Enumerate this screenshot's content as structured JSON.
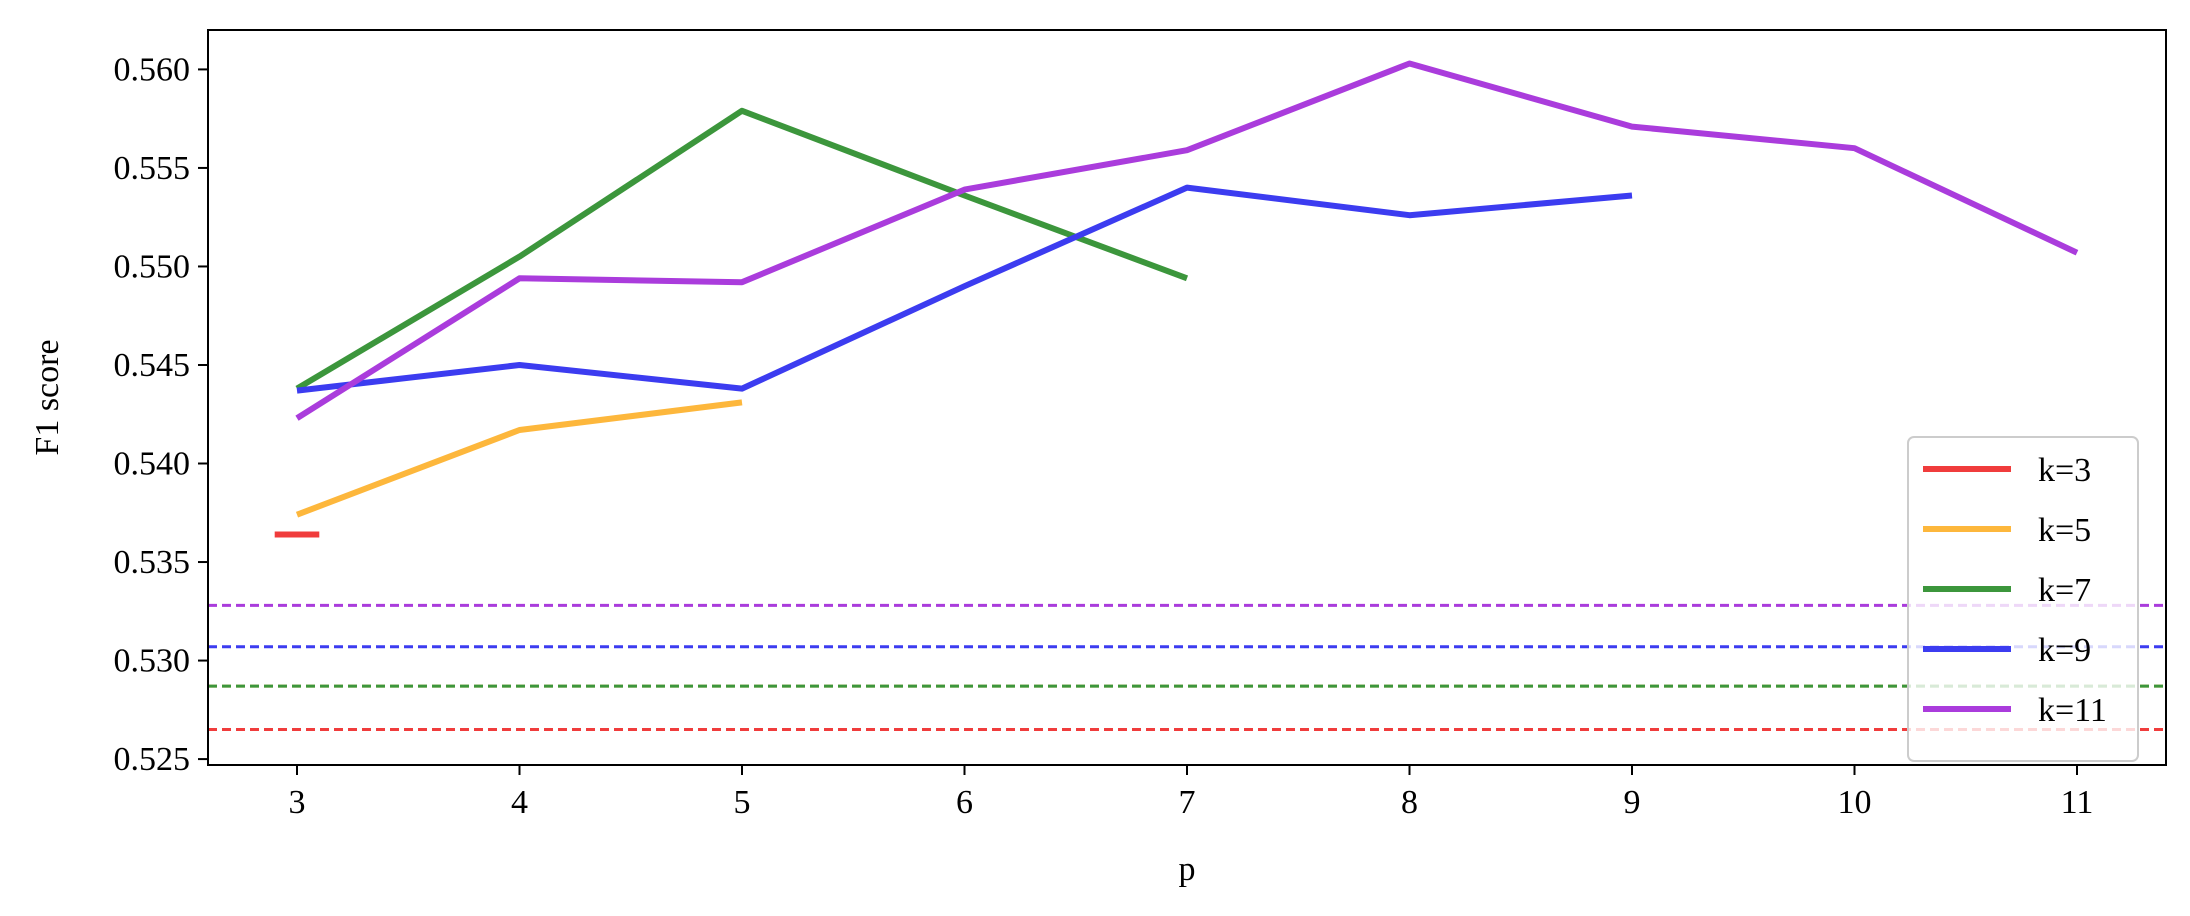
{
  "chart_data": {
    "type": "line",
    "title": "",
    "xlabel": "p",
    "ylabel": "F1 score",
    "xlim": [
      2.6,
      11.4
    ],
    "ylim": [
      0.5247,
      0.562
    ],
    "x_ticks": [
      3,
      4,
      5,
      6,
      7,
      8,
      9,
      10,
      11
    ],
    "y_ticks": [
      0.525,
      0.53,
      0.535,
      0.54,
      0.545,
      0.55,
      0.555,
      0.56
    ],
    "y_tick_labels": [
      "0.525",
      "0.530",
      "0.535",
      "0.540",
      "0.545",
      "0.550",
      "0.555",
      "0.560"
    ],
    "grid": false,
    "legend_position": "lower-right",
    "series": [
      {
        "name": "k=3",
        "color": "#f03c3c",
        "x": [
          2.9,
          3.1
        ],
        "y": [
          0.5364,
          0.5364
        ],
        "baseline": 0.5265
      },
      {
        "name": "k=5",
        "color": "#fdb73c",
        "x": [
          3,
          4,
          5
        ],
        "y": [
          0.5374,
          0.5417,
          0.5431
        ],
        "baseline": 0.5287
      },
      {
        "name": "k=7",
        "color": "#3c963c",
        "x": [
          3,
          4,
          5,
          6,
          7
        ],
        "y": [
          0.5438,
          0.5505,
          0.5579,
          0.5536,
          0.5494
        ],
        "baseline": 0.5287
      },
      {
        "name": "k=9",
        "color": "#3c3cf0",
        "x": [
          3,
          4,
          5,
          6,
          7,
          8,
          9
        ],
        "y": [
          0.5437,
          0.545,
          0.5438,
          0.549,
          0.554,
          0.5526,
          0.5536
        ],
        "baseline": 0.5307
      },
      {
        "name": "k=11",
        "color": "#aa3cdc",
        "x": [
          3,
          4,
          5,
          6,
          7,
          8,
          9,
          10,
          11
        ],
        "y": [
          0.5423,
          0.5494,
          0.5492,
          0.5539,
          0.5559,
          0.5603,
          0.5571,
          0.556,
          0.5507
        ],
        "baseline": 0.5328
      }
    ]
  }
}
